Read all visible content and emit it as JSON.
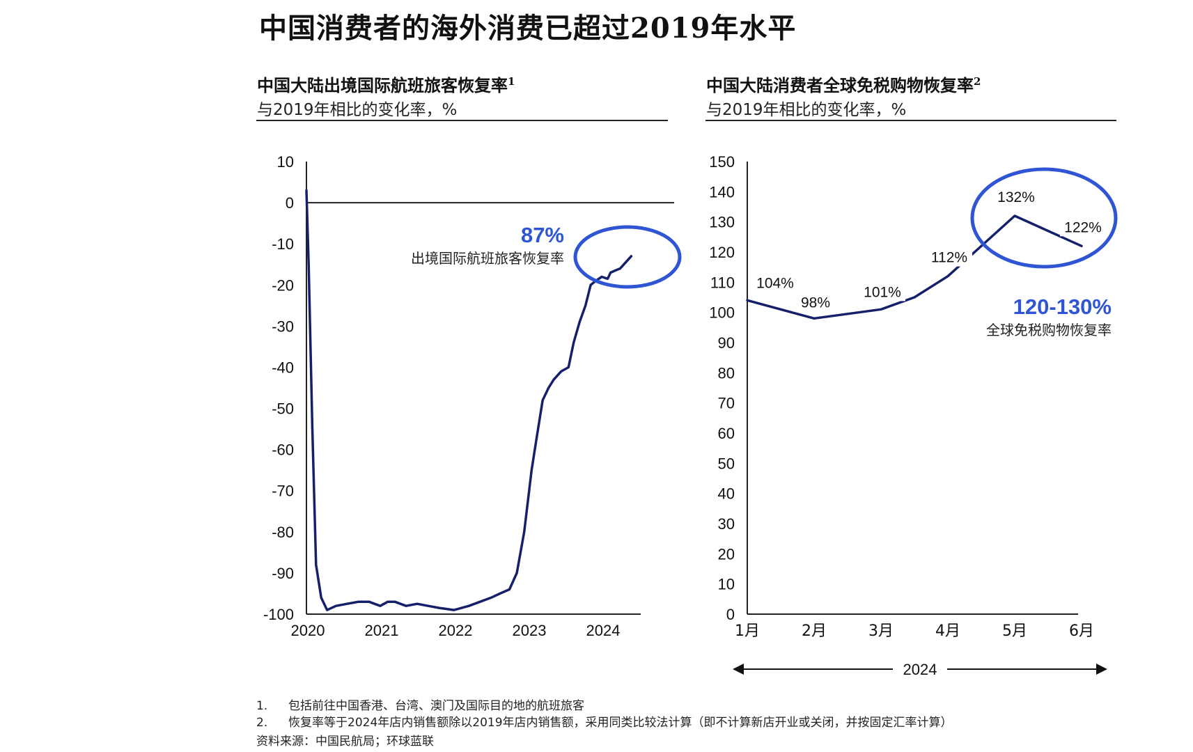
{
  "title": "中国消费者的海外消费已超过2019年水平",
  "left_panel": {
    "title": "中国大陆出境国际航班旅客恢复率",
    "title_note": "1",
    "subtitle": "与2019年相比的变化率，%",
    "annotation_value": "87%",
    "annotation_label": "出境国际航班旅客恢复率"
  },
  "right_panel": {
    "title": "中国大陆消费者全球免税购物恢复率",
    "title_note": "2",
    "subtitle": "与2019年相比的变化率，%",
    "annotation_value": "120-130%",
    "annotation_label": "全球免税购物恢复率",
    "x_group_label": "2024"
  },
  "footnotes": [
    {
      "num": "1.",
      "text": "包括前往中国香港、台湾、澳门及国际目的地的航班旅客"
    },
    {
      "num": "2.",
      "text": "恢复率等于2024年店内销售额除以2019年店内销售额，采用同类比较法计算（即不计算新店开业或关闭，并按固定汇率计算）"
    }
  ],
  "source": "资料来源：中国民航局；环球蓝联",
  "colors": {
    "line": "#16206a",
    "accent": "#2f55d4",
    "text": "#111111"
  },
  "chart_data": [
    {
      "type": "line",
      "xlabel": "",
      "ylabel": "",
      "x_ticks": [
        "2020",
        "2021",
        "2022",
        "2023",
        "2024"
      ],
      "xlim": [
        2020.0,
        2025.0
      ],
      "ylim": [
        -100,
        10
      ],
      "y_ticks": [
        10,
        0,
        -10,
        -20,
        -30,
        -40,
        -50,
        -60,
        -70,
        -80,
        -90,
        -100
      ],
      "grid": false,
      "series": [
        {
          "x": [
            2020.0,
            2020.03,
            2020.08,
            2020.13,
            2020.2,
            2020.28,
            2020.4,
            2020.55,
            2020.7,
            2020.85,
            2021.0,
            2021.1,
            2021.2,
            2021.35,
            2021.5,
            2021.65,
            2021.8,
            2022.0,
            2022.2,
            2022.35,
            2022.5,
            2022.62,
            2022.75,
            2022.85,
            2022.95,
            2023.05,
            2023.12,
            2023.2,
            2023.28,
            2023.35,
            2023.45,
            2023.55,
            2023.62,
            2023.7,
            2023.78,
            2023.85,
            2023.92,
            2024.0,
            2024.08,
            2024.12,
            2024.18,
            2024.25,
            2024.3,
            2024.35,
            2024.4
          ],
          "y": [
            3,
            -15,
            -55,
            -88,
            -96,
            -99,
            -98,
            -97.5,
            -97,
            -97,
            -98,
            -97,
            -97,
            -98,
            -97.5,
            -98,
            -98.5,
            -99,
            -98,
            -97,
            -96,
            -95,
            -94,
            -90,
            -80,
            -65,
            -57,
            -48,
            -45,
            -43,
            -41,
            -40,
            -34,
            -29,
            -25,
            -20,
            -19,
            -18,
            -18.5,
            -17,
            -16.5,
            -16,
            -15,
            -14,
            -13
          ]
        }
      ]
    },
    {
      "type": "line",
      "xlabel": "2024",
      "ylabel": "",
      "categories": [
        "1月",
        "2月",
        "3月",
        "4月",
        "5月",
        "6月"
      ],
      "ylim": [
        0,
        150
      ],
      "y_ticks": [
        150,
        140,
        130,
        120,
        110,
        100,
        90,
        80,
        70,
        60,
        50,
        40,
        30,
        20,
        10,
        0
      ],
      "grid": false,
      "series": [
        {
          "x": [
            0.0,
            1.0,
            2.0,
            2.5,
            3.0,
            4.0,
            4.6,
            5.0
          ],
          "y": [
            104,
            98,
            101,
            105,
            112,
            132,
            126,
            122
          ],
          "labels": [
            "104%",
            "98%",
            "101%",
            "",
            "112%",
            "132%",
            "",
            "122%"
          ]
        }
      ]
    }
  ]
}
